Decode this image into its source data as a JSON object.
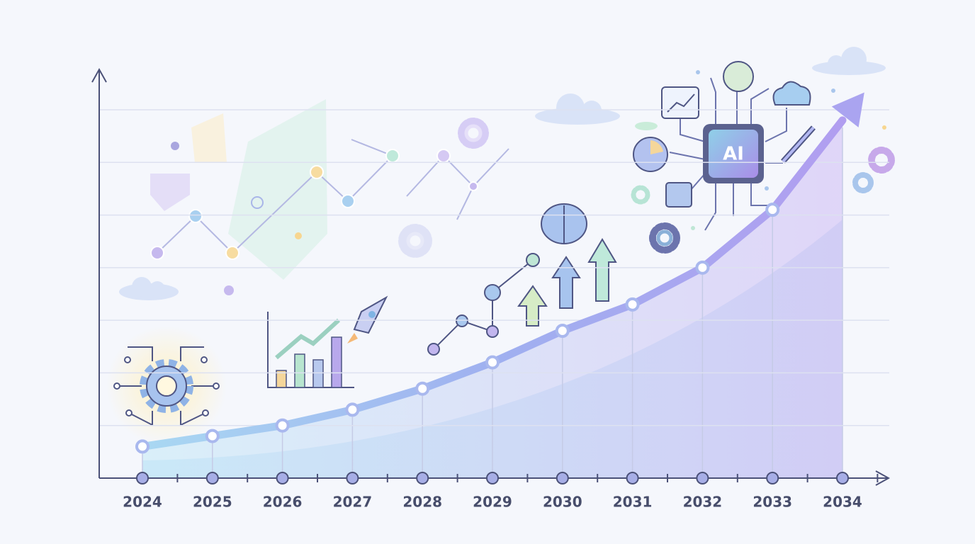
{
  "chart_data": {
    "type": "line",
    "categories": [
      "2024",
      "2025",
      "2026",
      "2027",
      "2028",
      "2029",
      "2030",
      "2031",
      "2032",
      "2033",
      "2034"
    ],
    "values": [
      0.6,
      0.8,
      1.0,
      1.3,
      1.7,
      2.2,
      2.8,
      3.3,
      4.0,
      5.1,
      6.8
    ],
    "color": "#9a9cf0",
    "ylim": [
      0,
      7
    ],
    "yticks": [
      1,
      2,
      3,
      4,
      5,
      6,
      7
    ],
    "grid": true,
    "annotations": [
      "AI"
    ]
  }
}
